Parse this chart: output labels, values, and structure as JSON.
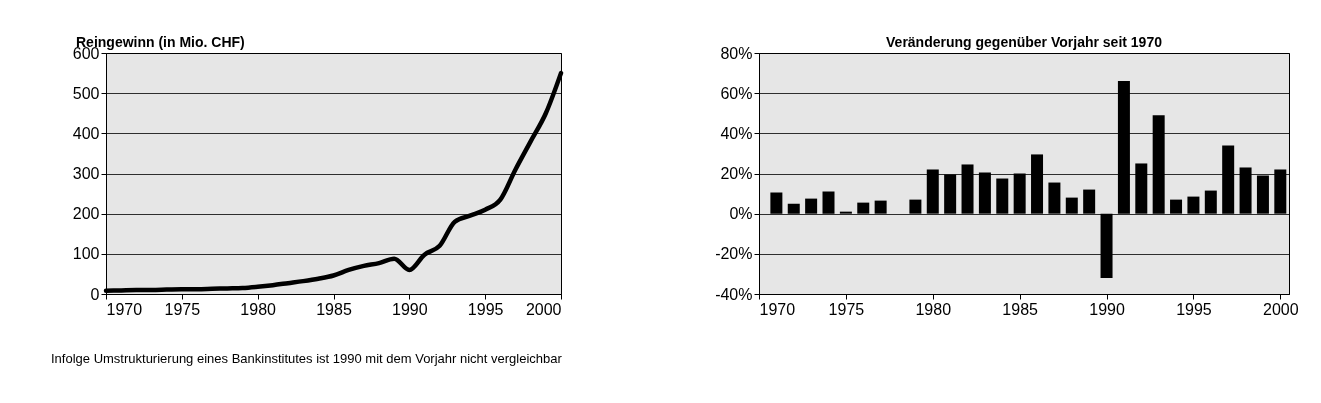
{
  "chart_data": [
    {
      "type": "line",
      "title": "Reingewinn (in Mio. CHF)",
      "x": [
        1970,
        1971,
        1972,
        1973,
        1974,
        1975,
        1976,
        1977,
        1978,
        1979,
        1980,
        1981,
        1982,
        1983,
        1984,
        1985,
        1986,
        1987,
        1988,
        1989,
        1990,
        1991,
        1992,
        1993,
        1994,
        1995,
        1996,
        1997,
        1998,
        1999,
        2000
      ],
      "series": [
        {
          "color": "#000000",
          "values": [
            8,
            9,
            10,
            10,
            11,
            12,
            12,
            13,
            14,
            15,
            18,
            22,
            27,
            32,
            38,
            46,
            60,
            70,
            77,
            88,
            60,
            98,
            120,
            180,
            195,
            210,
            235,
            310,
            380,
            450,
            550
          ]
        }
      ],
      "xlim": [
        1970,
        2000
      ],
      "xticks": [
        1970,
        1975,
        1980,
        1985,
        1990,
        1995,
        2000
      ],
      "ylim": [
        0,
        600
      ],
      "yticks": [
        0,
        100,
        200,
        300,
        400,
        500,
        600
      ],
      "grid": "y",
      "annotations": [
        "Infolge Umstrukturierung eines Bankinstitutes ist 1990 mit dem Vorjahr nicht vergleichbar"
      ]
    },
    {
      "type": "bar",
      "title": "Veränderung gegenüber Vorjahr seit 1970",
      "x": [
        1971,
        1972,
        1973,
        1974,
        1975,
        1976,
        1977,
        1978,
        1979,
        1980,
        1981,
        1982,
        1983,
        1984,
        1985,
        1986,
        1987,
        1988,
        1989,
        1990,
        1991,
        1992,
        1993,
        1994,
        1995,
        1996,
        1997,
        1998,
        1999,
        2000
      ],
      "series": [
        {
          "color": "#000000",
          "values": [
            10.5,
            5,
            7.5,
            11,
            1,
            5.5,
            6.5,
            null,
            7,
            22,
            19.5,
            24.5,
            20.5,
            17.5,
            20,
            29.5,
            15.5,
            8,
            12,
            -32,
            66,
            25,
            49,
            7,
            8.5,
            11.5,
            34,
            23,
            19,
            22
          ]
        }
      ],
      "xlim": [
        1970,
        2000.5
      ],
      "xticks": [
        1970,
        1975,
        1980,
        1985,
        1990,
        1995,
        2000
      ],
      "ylim": [
        -40,
        80
      ],
      "yticks": [
        {
          "value": -40,
          "label": "-40%"
        },
        {
          "value": -20,
          "label": "-20%"
        },
        {
          "value": 0,
          "label": "0%"
        },
        {
          "value": 20,
          "label": "20%"
        },
        {
          "value": 40,
          "label": "40%"
        },
        {
          "value": 60,
          "label": "60%"
        },
        {
          "value": 80,
          "label": "80%"
        }
      ],
      "grid": "y"
    }
  ]
}
